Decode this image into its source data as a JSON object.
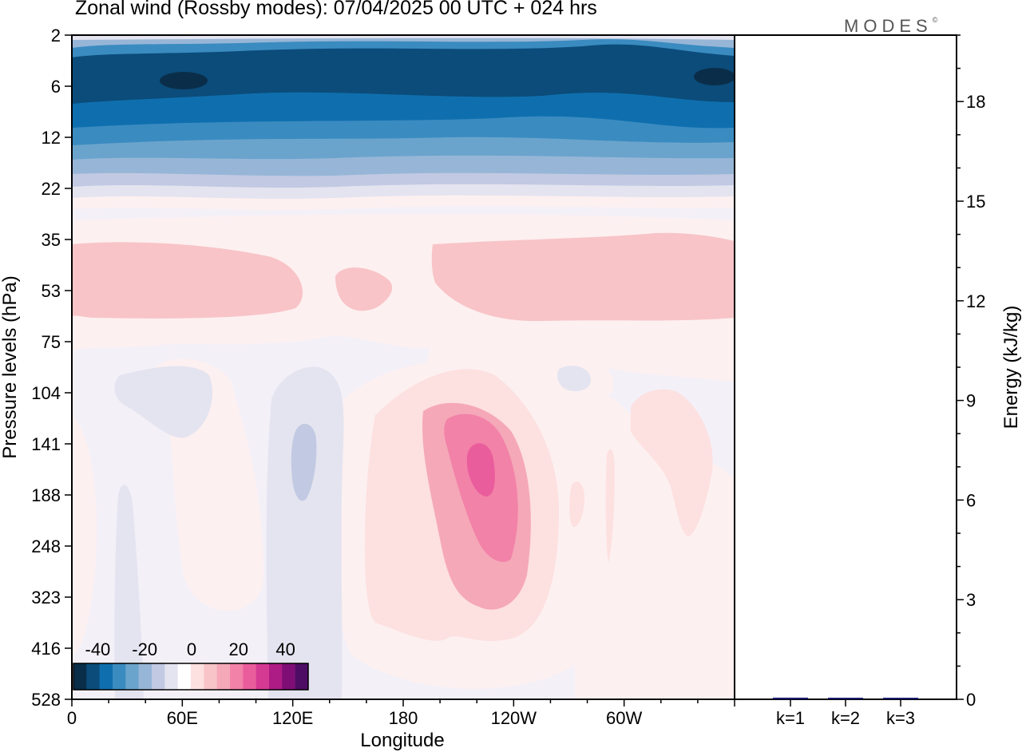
{
  "page": {
    "title": "Zonal wind (Rossby modes):  07/04/2025  00 UTC  + 024 hrs",
    "logo_text": "MODES",
    "logo_mark": "©"
  },
  "chart_data": [
    {
      "type": "heatmap",
      "title": "Zonal wind (Rossby modes):  07/04/2025  00 UTC  + 024 hrs",
      "xlabel": "Longitude",
      "ylabel": "Pressure levels (hPa)",
      "x_ticks": [
        "0",
        "60E",
        "120E",
        "180",
        "120W",
        "60W"
      ],
      "x_tick_values": [
        0,
        60,
        120,
        180,
        240,
        300
      ],
      "xlim": [
        0,
        360
      ],
      "y_ticks": [
        "2",
        "6",
        "12",
        "22",
        "35",
        "53",
        "75",
        "104",
        "141",
        "188",
        "248",
        "323",
        "416",
        "528"
      ],
      "y_scale": "model levels",
      "colorbar": {
        "tick_labels": [
          "-40",
          "-20",
          "0",
          "20",
          "40"
        ],
        "tick_values": [
          -40,
          -20,
          0,
          20,
          40
        ],
        "range": [
          -50,
          50
        ],
        "step": 5,
        "colors": [
          "#0a2e4a",
          "#0b4c7a",
          "#0f6fae",
          "#3a8bc0",
          "#6aa4cc",
          "#97b6d7",
          "#c2c9e2",
          "#e4e4f0",
          "#ffffff",
          "#fde0e0",
          "#f8c4c8",
          "#f5a8b8",
          "#f282a8",
          "#ea5d9c",
          "#d53a93",
          "#ad1b84",
          "#7e0e76",
          "#4e0d65"
        ]
      },
      "features": [
        {
          "kind": "easterly core",
          "level_hPa": 6,
          "longitude": 60,
          "value": -45
        },
        {
          "kind": "easterly core",
          "level_hPa": 6,
          "longitude": 350,
          "value": -45
        },
        {
          "kind": "westerly maximum",
          "level_hPa": 141,
          "longitude": 225,
          "value": 20
        }
      ]
    },
    {
      "type": "bar",
      "ylabel": "Energy (kJ/kg)",
      "categories": [
        "k=1",
        "k=2",
        "k=3"
      ],
      "values": [
        0.05,
        0.02,
        0.03
      ],
      "ylim": [
        0,
        20
      ],
      "y_ticks": [
        0,
        3,
        6,
        9,
        12,
        15,
        18
      ],
      "bar_color": "#1a1a6e"
    }
  ]
}
